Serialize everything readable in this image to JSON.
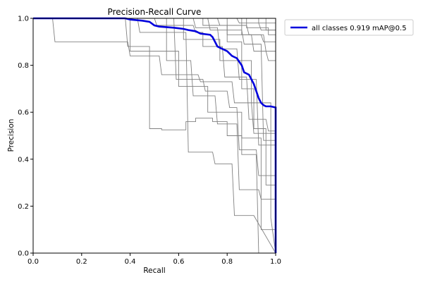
{
  "chart_data": {
    "type": "line",
    "title": "Precision-Recall Curve",
    "xlabel": "Recall",
    "ylabel": "Precision",
    "xlim": [
      0.0,
      1.0
    ],
    "ylim": [
      0.0,
      1.0
    ],
    "x_ticks": [
      "0.0",
      "0.2",
      "0.4",
      "0.6",
      "0.8",
      "1.0"
    ],
    "y_ticks": [
      "0.0",
      "0.2",
      "0.4",
      "0.6",
      "0.8",
      "1.0"
    ],
    "grid": false,
    "legend_position": "outside-top-right",
    "colors": {
      "class_series": "#808080",
      "all_classes": "#0000dd"
    },
    "series": [
      {
        "name": "all classes 0.919 mAP@0.5",
        "highlight": true,
        "points": [
          [
            0.0,
            1.0
          ],
          [
            0.38,
            1.0
          ],
          [
            0.4,
            0.995
          ],
          [
            0.45,
            0.99
          ],
          [
            0.48,
            0.985
          ],
          [
            0.5,
            0.97
          ],
          [
            0.52,
            0.965
          ],
          [
            0.58,
            0.96
          ],
          [
            0.62,
            0.955
          ],
          [
            0.64,
            0.95
          ],
          [
            0.67,
            0.945
          ],
          [
            0.69,
            0.935
          ],
          [
            0.73,
            0.93
          ],
          [
            0.74,
            0.92
          ],
          [
            0.75,
            0.9
          ],
          [
            0.76,
            0.88
          ],
          [
            0.78,
            0.87
          ],
          [
            0.8,
            0.86
          ],
          [
            0.82,
            0.84
          ],
          [
            0.84,
            0.83
          ],
          [
            0.86,
            0.8
          ],
          [
            0.87,
            0.77
          ],
          [
            0.89,
            0.76
          ],
          [
            0.9,
            0.74
          ],
          [
            0.91,
            0.72
          ],
          [
            0.92,
            0.69
          ],
          [
            0.93,
            0.66
          ],
          [
            0.94,
            0.64
          ],
          [
            0.95,
            0.63
          ],
          [
            0.96,
            0.625
          ],
          [
            0.98,
            0.625
          ],
          [
            1.0,
            0.62
          ],
          [
            1.0,
            0.0
          ]
        ]
      },
      {
        "points": [
          [
            0.0,
            1.0
          ],
          [
            0.08,
            1.0
          ],
          [
            0.09,
            0.9
          ],
          [
            0.39,
            0.9
          ],
          [
            0.4,
            0.84
          ],
          [
            0.52,
            0.84
          ],
          [
            0.53,
            0.76
          ],
          [
            0.68,
            0.76
          ],
          [
            0.69,
            0.73
          ],
          [
            0.82,
            0.73
          ],
          [
            0.83,
            0.64
          ],
          [
            0.9,
            0.64
          ],
          [
            0.91,
            0.51
          ],
          [
            1.0,
            0.51
          ],
          [
            1.0,
            0.0
          ]
        ]
      },
      {
        "points": [
          [
            0.0,
            1.0
          ],
          [
            0.38,
            1.0
          ],
          [
            0.39,
            0.88
          ],
          [
            0.48,
            0.88
          ],
          [
            0.48,
            0.53
          ],
          [
            0.53,
            0.53
          ],
          [
            0.53,
            0.525
          ],
          [
            0.63,
            0.525
          ],
          [
            0.63,
            0.56
          ],
          [
            0.67,
            0.56
          ],
          [
            0.67,
            0.575
          ],
          [
            0.74,
            0.575
          ],
          [
            0.74,
            0.56
          ],
          [
            0.8,
            0.56
          ],
          [
            0.8,
            0.5
          ],
          [
            0.86,
            0.5
          ],
          [
            0.86,
            0.42
          ],
          [
            0.92,
            0.42
          ],
          [
            0.93,
            0.0
          ],
          [
            1.0,
            0.0
          ]
        ]
      },
      {
        "points": [
          [
            0.0,
            1.0
          ],
          [
            0.43,
            1.0
          ],
          [
            0.44,
            0.94
          ],
          [
            0.63,
            0.94
          ],
          [
            0.64,
            0.43
          ],
          [
            0.74,
            0.43
          ],
          [
            0.75,
            0.38
          ],
          [
            0.82,
            0.38
          ],
          [
            0.83,
            0.16
          ],
          [
            0.91,
            0.16
          ],
          [
            1.0,
            0.0
          ]
        ]
      },
      {
        "points": [
          [
            0.0,
            1.0
          ],
          [
            0.5,
            1.0
          ],
          [
            0.51,
            0.97
          ],
          [
            0.66,
            0.97
          ],
          [
            0.67,
            0.94
          ],
          [
            0.7,
            0.94
          ],
          [
            0.7,
            0.88
          ],
          [
            0.78,
            0.88
          ],
          [
            0.79,
            0.75
          ],
          [
            0.88,
            0.75
          ],
          [
            0.89,
            0.57
          ],
          [
            0.96,
            0.57
          ],
          [
            0.97,
            0.52
          ],
          [
            1.0,
            0.52
          ],
          [
            1.0,
            0.0
          ]
        ]
      },
      {
        "points": [
          [
            0.0,
            1.0
          ],
          [
            0.58,
            1.0
          ],
          [
            0.59,
            0.74
          ],
          [
            0.7,
            0.74
          ],
          [
            0.71,
            0.69
          ],
          [
            0.8,
            0.69
          ],
          [
            0.81,
            0.62
          ],
          [
            0.84,
            0.62
          ],
          [
            0.85,
            0.44
          ],
          [
            0.92,
            0.44
          ],
          [
            0.93,
            0.33
          ],
          [
            1.0,
            0.33
          ],
          [
            1.0,
            0.0
          ]
        ]
      },
      {
        "points": [
          [
            0.0,
            1.0
          ],
          [
            0.66,
            1.0
          ],
          [
            0.67,
            0.96
          ],
          [
            0.76,
            0.96
          ],
          [
            0.77,
            0.87
          ],
          [
            0.84,
            0.87
          ],
          [
            0.85,
            0.74
          ],
          [
            0.92,
            0.74
          ],
          [
            0.93,
            0.46
          ],
          [
            1.0,
            0.46
          ],
          [
            1.0,
            0.0
          ]
        ]
      },
      {
        "points": [
          [
            0.0,
            1.0
          ],
          [
            0.7,
            1.0
          ],
          [
            0.7,
            0.97
          ],
          [
            0.8,
            0.97
          ],
          [
            0.8,
            0.9
          ],
          [
            0.86,
            0.9
          ],
          [
            0.86,
            0.7
          ],
          [
            0.91,
            0.7
          ],
          [
            0.91,
            0.53
          ],
          [
            0.96,
            0.53
          ],
          [
            0.96,
            0.29
          ],
          [
            1.0,
            0.29
          ],
          [
            1.0,
            0.0
          ]
        ]
      },
      {
        "points": [
          [
            0.0,
            1.0
          ],
          [
            0.72,
            1.0
          ],
          [
            0.73,
            0.95
          ],
          [
            0.86,
            0.95
          ],
          [
            0.87,
            0.89
          ],
          [
            0.94,
            0.89
          ],
          [
            0.95,
            0.48
          ],
          [
            1.0,
            0.48
          ],
          [
            1.0,
            0.0
          ]
        ]
      },
      {
        "points": [
          [
            0.0,
            1.0
          ],
          [
            0.76,
            1.0
          ],
          [
            0.77,
            0.97
          ],
          [
            0.88,
            0.97
          ],
          [
            0.89,
            0.93
          ],
          [
            0.95,
            0.93
          ],
          [
            0.96,
            0.86
          ],
          [
            1.0,
            0.86
          ],
          [
            1.0,
            0.0
          ]
        ]
      },
      {
        "points": [
          [
            0.0,
            1.0
          ],
          [
            0.8,
            1.0
          ],
          [
            0.8,
            0.93
          ],
          [
            0.9,
            0.93
          ],
          [
            0.91,
            0.86
          ],
          [
            0.96,
            0.86
          ],
          [
            0.97,
            0.82
          ],
          [
            1.0,
            0.82
          ],
          [
            1.0,
            0.0
          ]
        ]
      },
      {
        "points": [
          [
            0.0,
            1.0
          ],
          [
            0.84,
            1.0
          ],
          [
            0.85,
            0.98
          ],
          [
            0.93,
            0.98
          ],
          [
            0.94,
            0.95
          ],
          [
            1.0,
            0.95
          ],
          [
            1.0,
            0.0
          ]
        ]
      },
      {
        "points": [
          [
            0.0,
            1.0
          ],
          [
            0.86,
            1.0
          ],
          [
            0.86,
            0.93
          ],
          [
            0.94,
            0.93
          ],
          [
            0.95,
            0.9
          ],
          [
            1.0,
            0.9
          ],
          [
            1.0,
            0.0
          ]
        ]
      },
      {
        "points": [
          [
            0.0,
            1.0
          ],
          [
            0.88,
            1.0
          ],
          [
            0.88,
            0.96
          ],
          [
            0.97,
            0.96
          ],
          [
            0.97,
            0.93
          ],
          [
            1.0,
            0.93
          ],
          [
            1.0,
            0.0
          ]
        ]
      },
      {
        "points": [
          [
            0.0,
            1.0
          ],
          [
            0.93,
            1.0
          ],
          [
            0.93,
            0.98
          ],
          [
            1.0,
            0.98
          ],
          [
            1.0,
            0.0
          ]
        ]
      },
      {
        "points": [
          [
            0.0,
            1.0
          ],
          [
            0.96,
            1.0
          ],
          [
            0.96,
            0.95
          ],
          [
            1.0,
            0.95
          ],
          [
            1.0,
            0.0
          ]
        ]
      },
      {
        "points": [
          [
            0.0,
            1.0
          ],
          [
            0.55,
            1.0
          ],
          [
            0.55,
            0.82
          ],
          [
            0.65,
            0.82
          ],
          [
            0.66,
            0.67
          ],
          [
            0.75,
            0.67
          ],
          [
            0.76,
            0.55
          ],
          [
            0.84,
            0.55
          ],
          [
            0.85,
            0.27
          ],
          [
            0.93,
            0.27
          ],
          [
            0.94,
            0.23
          ],
          [
            1.0,
            0.23
          ],
          [
            1.0,
            0.0
          ]
        ]
      },
      {
        "points": [
          [
            0.0,
            1.0
          ],
          [
            0.4,
            1.0
          ],
          [
            0.4,
            0.86
          ],
          [
            0.6,
            0.86
          ],
          [
            0.6,
            0.71
          ],
          [
            0.72,
            0.71
          ],
          [
            0.72,
            0.6
          ],
          [
            0.86,
            0.6
          ],
          [
            0.86,
            0.49
          ],
          [
            0.94,
            0.49
          ],
          [
            0.94,
            0.1
          ],
          [
            1.0,
            0.1
          ],
          [
            1.0,
            0.0
          ]
        ]
      },
      {
        "points": [
          [
            0.0,
            1.0
          ],
          [
            0.62,
            1.0
          ],
          [
            0.62,
            0.91
          ],
          [
            0.77,
            0.91
          ],
          [
            0.77,
            0.82
          ],
          [
            0.9,
            0.82
          ],
          [
            0.9,
            0.64
          ],
          [
            0.98,
            0.64
          ],
          [
            0.98,
            0.15
          ],
          [
            1.0,
            0.0
          ]
        ]
      }
    ]
  }
}
